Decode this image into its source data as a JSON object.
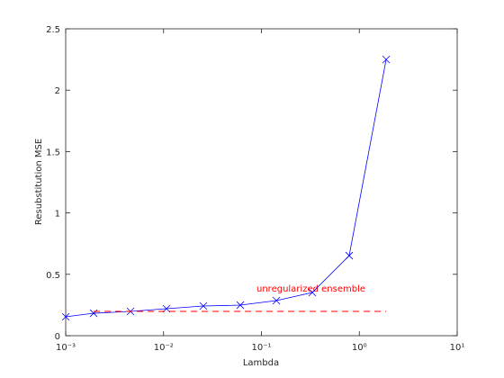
{
  "chart_data": {
    "type": "line",
    "xlabel": "Lambda",
    "ylabel": "Resubstitution MSE",
    "annotation": "unregularized ensemble",
    "xscale": "log",
    "xlim": [
      0.001,
      10
    ],
    "xticks": [
      {
        "value": 0.001,
        "label": "10⁻³"
      },
      {
        "value": 0.01,
        "label": "10⁻²"
      },
      {
        "value": 0.1,
        "label": "10⁻¹"
      },
      {
        "value": 1,
        "label": "10⁰"
      },
      {
        "value": 10,
        "label": "10¹"
      }
    ],
    "ylim": [
      0,
      2.5
    ],
    "yticks": [
      0,
      0.5,
      1,
      1.5,
      2,
      2.5
    ],
    "grid": false,
    "series": [
      {
        "color": "#0000ff",
        "marker": "x",
        "dashed": false,
        "x": [
          0.001,
          0.00193,
          0.00459,
          0.0107,
          0.0255,
          0.0608,
          0.142,
          0.331,
          0.788,
          1.88
        ],
        "values": [
          0.154,
          0.183,
          0.198,
          0.22,
          0.242,
          0.249,
          0.286,
          0.352,
          0.652,
          2.25
        ]
      },
      {
        "color": "#ff0000",
        "marker": null,
        "dashed": true,
        "x": [
          0.00193,
          1.88
        ],
        "values": [
          0.198,
          0.198
        ]
      }
    ]
  }
}
